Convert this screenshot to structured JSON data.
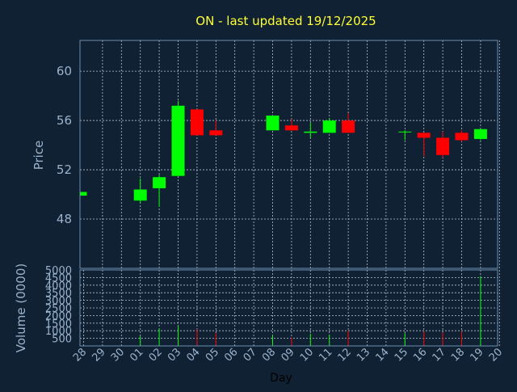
{
  "chart_data": {
    "type": "candlestick",
    "title": "ON - last updated 19/12/2025",
    "xlabel": "Day",
    "price_panel": {
      "ylabel": "Price",
      "ylim": [
        44,
        62.5
      ],
      "yticks": [
        48,
        52,
        56,
        60
      ]
    },
    "volume_panel": {
      "ylabel": "Volume (0000)",
      "ylim": [
        0,
        5000
      ],
      "yticks": [
        500,
        1000,
        1500,
        2000,
        2500,
        3000,
        3500,
        4000,
        4500,
        5000
      ]
    },
    "x_tick_labels": [
      "28",
      "29",
      "30",
      "01",
      "02",
      "03",
      "04",
      "05",
      "06",
      "07",
      "08",
      "09",
      "10",
      "11",
      "12",
      "13",
      "14",
      "15",
      "16",
      "17",
      "18",
      "19",
      "20"
    ],
    "up_color": "#00ff00",
    "down_color": "#ff0000",
    "candles": [
      {
        "day": "28",
        "open": 49.9,
        "close": 50.2,
        "high": 50.2,
        "low": 49.9,
        "volume": 0
      },
      {
        "day": "01",
        "open": 49.5,
        "close": 50.4,
        "high": 51.3,
        "low": 49.3,
        "volume": 650
      },
      {
        "day": "02",
        "open": 50.5,
        "close": 51.4,
        "high": 51.6,
        "low": 49.0,
        "volume": 1150
      },
      {
        "day": "03",
        "open": 51.5,
        "close": 57.2,
        "high": 57.6,
        "low": 51.5,
        "volume": 1300
      },
      {
        "day": "04",
        "open": 56.9,
        "close": 54.8,
        "high": 56.9,
        "low": 54.8,
        "volume": 1100
      },
      {
        "day": "05",
        "open": 55.2,
        "close": 54.8,
        "high": 56.0,
        "low": 54.8,
        "volume": 850
      },
      {
        "day": "08",
        "open": 55.2,
        "close": 56.4,
        "high": 56.4,
        "low": 55.2,
        "volume": 700
      },
      {
        "day": "09",
        "open": 55.6,
        "close": 55.2,
        "high": 56.1,
        "low": 55.2,
        "volume": 550
      },
      {
        "day": "10",
        "open": 55.0,
        "close": 55.1,
        "high": 55.8,
        "low": 54.6,
        "volume": 800
      },
      {
        "day": "11",
        "open": 55.0,
        "close": 56.0,
        "high": 56.2,
        "low": 55.0,
        "volume": 750
      },
      {
        "day": "12",
        "open": 56.0,
        "close": 55.0,
        "high": 56.6,
        "low": 55.0,
        "volume": 1000
      },
      {
        "day": "15",
        "open": 55.1,
        "close": 55.1,
        "high": 55.2,
        "low": 54.4,
        "volume": 850
      },
      {
        "day": "16",
        "open": 55.0,
        "close": 54.6,
        "high": 55.0,
        "low": 53.1,
        "volume": 950
      },
      {
        "day": "17",
        "open": 54.6,
        "close": 53.2,
        "high": 55.1,
        "low": 53.0,
        "volume": 900
      },
      {
        "day": "18",
        "open": 55.0,
        "close": 54.4,
        "high": 55.2,
        "low": 54.3,
        "volume": 950
      },
      {
        "day": "19",
        "open": 54.5,
        "close": 55.3,
        "high": 55.3,
        "low": 54.4,
        "volume": 4600
      }
    ]
  }
}
